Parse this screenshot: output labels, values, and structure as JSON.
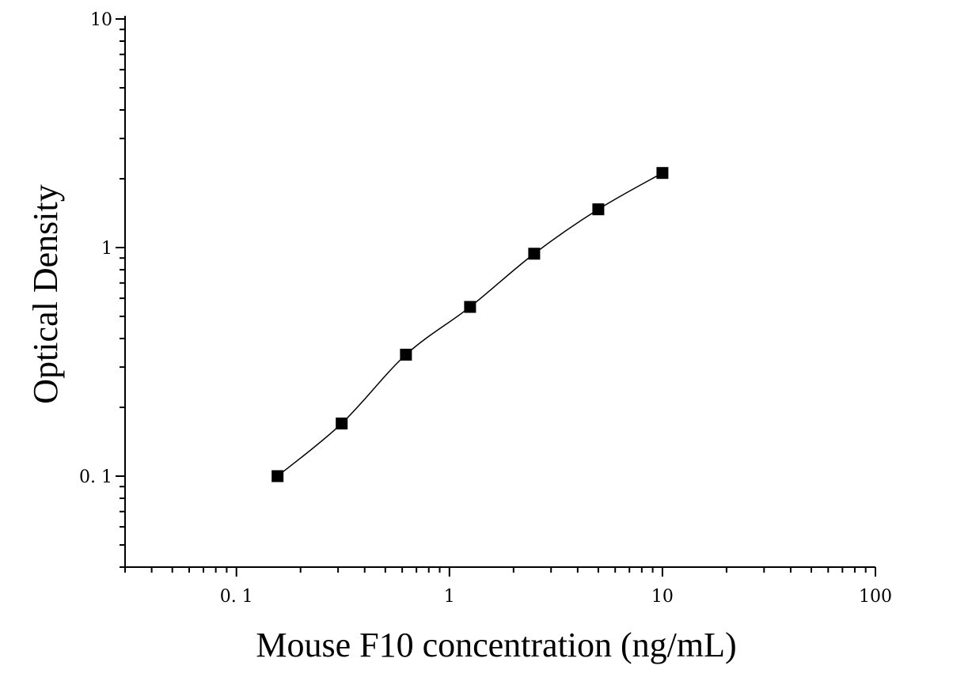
{
  "chart_data": {
    "type": "scatter",
    "title": "",
    "xlabel": "Mouse F10 concentration (ng/mL)",
    "ylabel": "Optical Density",
    "x_scale": "log",
    "y_scale": "log",
    "xlim": [
      0.03,
      100
    ],
    "ylim": [
      0.04,
      10
    ],
    "x_ticks": [
      {
        "value": 0.1,
        "label": "0. 1"
      },
      {
        "value": 1,
        "label": "1"
      },
      {
        "value": 10,
        "label": "10"
      },
      {
        "value": 100,
        "label": "100"
      }
    ],
    "y_ticks": [
      {
        "value": 0.1,
        "label": "0. 1"
      },
      {
        "value": 1,
        "label": "1"
      },
      {
        "value": 10,
        "label": "10"
      }
    ],
    "grid": false,
    "legend": "none",
    "marker": "square",
    "fit_line": true,
    "series": [
      {
        "x": [
          0.156,
          0.312,
          0.625,
          1.25,
          2.5,
          5,
          10
        ],
        "y": [
          0.1,
          0.17,
          0.34,
          0.55,
          0.94,
          1.47,
          2.12
        ]
      }
    ],
    "colors": {
      "marker": "#000000",
      "line": "#000000",
      "axis": "#000000"
    }
  }
}
